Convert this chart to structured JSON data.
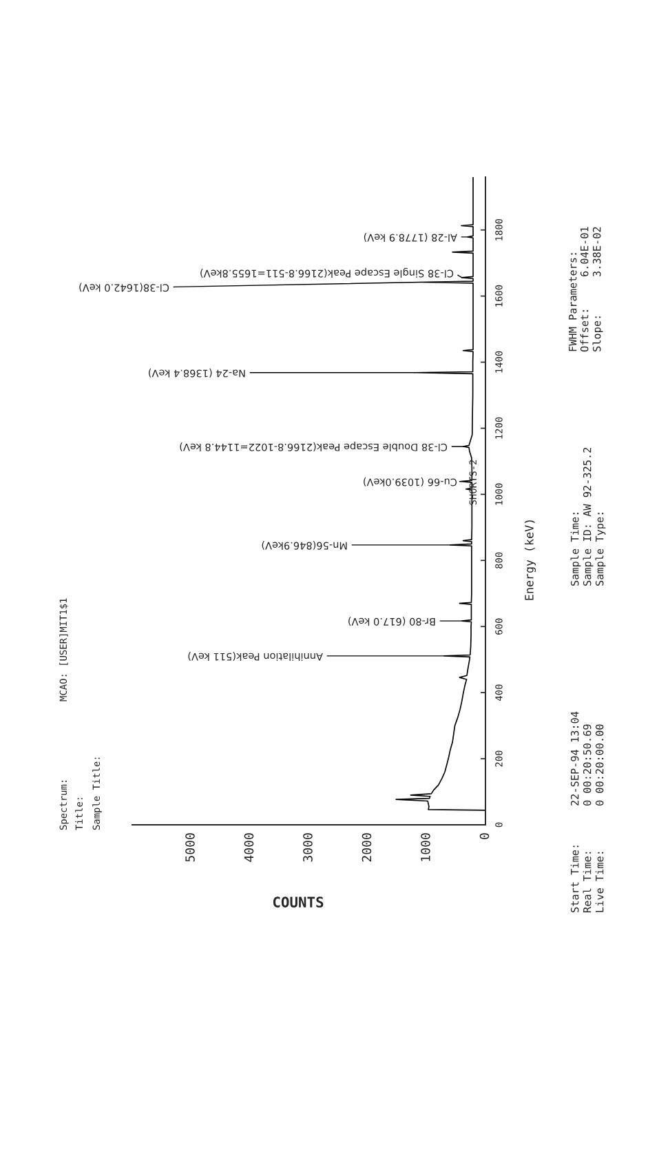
{
  "chart_data": {
    "type": "line",
    "title": "SHORTS-2",
    "xlabel": "COUNTS",
    "ylabel": "Energy (keV)",
    "xlim": [
      6000,
      0
    ],
    "xticks": [
      0,
      1000,
      2000,
      3000,
      4000,
      5000
    ],
    "ylim": [
      0,
      1960
    ],
    "yticks": [
      0,
      200,
      400,
      600,
      800,
      1000,
      1200,
      1400,
      1600,
      1800
    ],
    "series": [
      {
        "color": "#000000",
        "x": [
          0,
          0,
          970,
          960,
          980,
          1520,
          950,
          940,
          1270,
          920,
          880,
          800,
          740,
          690,
          660,
          630,
          600,
          560,
          540,
          520,
          470,
          430,
          400,
          375,
          345,
          320,
          440,
          315,
          295,
          270,
          265,
          700,
          260,
          250,
          245,
          245,
          240,
          400,
          240,
          240,
          240,
          440,
          240,
          235,
          235,
          235,
          235,
          600,
          235,
          235,
          380,
          235,
          230,
          230,
          230,
          230,
          330,
          230,
          230,
          410,
          230,
          230,
          235,
          270,
          280,
          380,
          280,
          260,
          225,
          220,
          215,
          215,
          1200,
          215,
          215,
          210,
          380,
          210,
          210,
          210,
          210,
          210,
          1100,
          210,
          210,
          400,
          210,
          210,
          210,
          560,
          210,
          210,
          300,
          210,
          210,
          410,
          210,
          210,
          210,
          210
        ],
        "values": [
          0,
          44,
          46,
          55,
          72,
          77,
          80,
          86,
          90,
          94,
          105,
          120,
          140,
          160,
          180,
          200,
          225,
          250,
          275,
          300,
          325,
          350,
          375,
          400,
          425,
          440,
          446,
          452,
          475,
          500,
          508,
          511,
          514,
          540,
          570,
          600,
          614,
          617,
          620,
          650,
          667,
          670,
          673,
          700,
          750,
          800,
          844,
          846.9,
          850,
          857,
          860,
          863,
          900,
          950,
          1000,
          1013,
          1016,
          1019,
          1036,
          1039,
          1042,
          1080,
          1110,
          1130,
          1142,
          1144.8,
          1148,
          1160,
          1180,
          1250,
          1300,
          1365,
          1368.4,
          1371,
          1400,
          1432,
          1435,
          1438,
          1500,
          1550,
          1600,
          1639,
          1642,
          1645,
          1653,
          1655.8,
          1659,
          1700,
          1730,
          1733,
          1736,
          1776,
          1778.9,
          1782,
          1810,
          1813,
          1816,
          1850,
          1900,
          1960
        ]
      }
    ],
    "annotations": [
      {
        "text": "Annihilation Peak(511 keV)",
        "x": 700,
        "y": 511
      },
      {
        "text": "Br-80 (617.0 keV)",
        "x": 400,
        "y": 617
      },
      {
        "text": "Mn-56(846.9keV)",
        "x": 600,
        "y": 846.9
      },
      {
        "text": "Cu-66 (1039.0keV)",
        "x": 410,
        "y": 1039
      },
      {
        "text": "Cl-38 Double Escape Peak(2166.8-1022=1144.8 keV)",
        "x": 380,
        "y": 1144.8
      },
      {
        "text": "Na-24 (1368.4 keV)",
        "x": 1200,
        "y": 1368.4
      },
      {
        "text": "Cl-38(1642.0 keV)",
        "x": 1100,
        "y": 1642
      },
      {
        "text": "Cl-38 Single Escape Peak(2166.8-511=1655.8keV)",
        "x": 400,
        "y": 1655.8
      },
      {
        "text": "Al-28 (1778.9 keV)",
        "x": 300,
        "y": 1778.9
      },
      "Spectrum:",
      "Title:",
      "Sample Title:",
      "MCAO: [USER]MIT1$1",
      "Start Time:",
      "Real Time:",
      "Live Time:",
      "22-SEP-94 13:04",
      "0 00:20:50.69",
      "0 00:20:00.00",
      "Sample Time:",
      "Sample ID: AW 92-325.2",
      "Sample Type:",
      "FWHM Parameters:",
      "Offset:",
      "Slope:",
      "6.04E-01",
      "3.38E-02"
    ]
  }
}
